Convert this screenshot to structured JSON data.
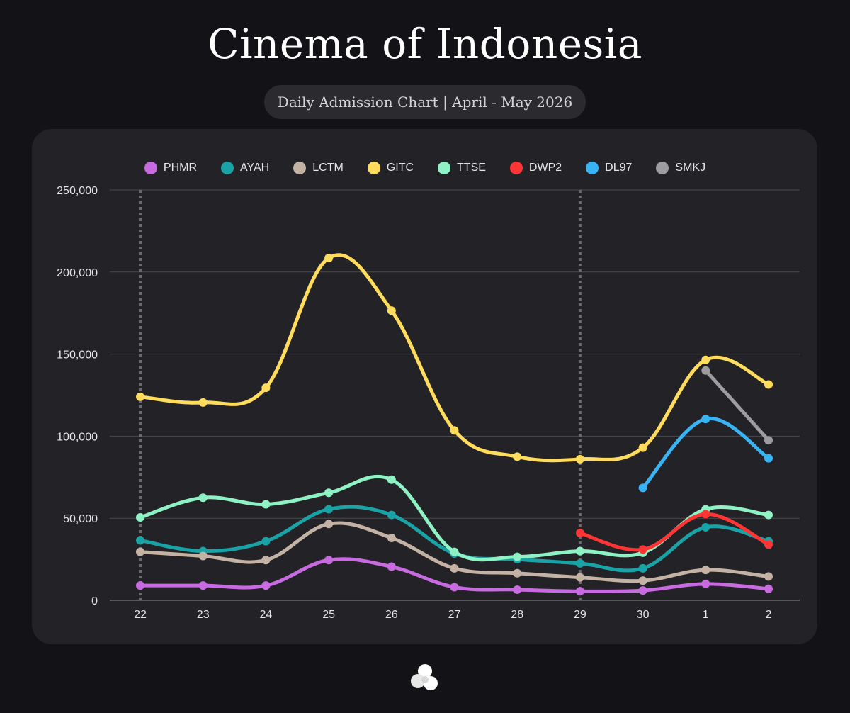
{
  "header": {
    "title": "Cinema of Indonesia",
    "subtitle": "Daily Admission Chart | April - May 2026"
  },
  "chart_data": {
    "type": "line",
    "categories": [
      "22",
      "23",
      "24",
      "25",
      "26",
      "27",
      "28",
      "29",
      "30",
      "1",
      "2"
    ],
    "ylim": [
      0,
      250000
    ],
    "yticks": [
      0,
      50000,
      100000,
      150000,
      200000,
      250000
    ],
    "ytick_labels": [
      "0",
      "50,000",
      "100,000",
      "150,000",
      "200,000",
      "250,000"
    ],
    "grid": true,
    "legend": "top",
    "markers": [
      "22",
      "29"
    ],
    "series": [
      {
        "name": "PHMR",
        "color": "#c86be0",
        "values": [
          9000,
          9000,
          9000,
          24500,
          20500,
          8000,
          6500,
          5500,
          6000,
          10000,
          7000
        ]
      },
      {
        "name": "AYAH",
        "color": "#1aa3a7",
        "values": [
          36500,
          30000,
          36000,
          55500,
          52000,
          28500,
          25000,
          22500,
          19500,
          44500,
          36000
        ]
      },
      {
        "name": "LCTM",
        "color": "#c4b3a4",
        "values": [
          29500,
          27000,
          24500,
          46500,
          38000,
          19500,
          16500,
          14000,
          12000,
          18500,
          14500
        ]
      },
      {
        "name": "GITC",
        "color": "#ffdc5c",
        "values": [
          124000,
          120500,
          129500,
          208500,
          176500,
          103500,
          87500,
          86000,
          93000,
          146500,
          131500
        ]
      },
      {
        "name": "TTSE",
        "color": "#8ef2c4",
        "values": [
          50500,
          62500,
          58500,
          65500,
          73500,
          29500,
          26500,
          30000,
          29000,
          55500,
          52000
        ]
      },
      {
        "name": "DWP2",
        "color": "#ff3535",
        "values": [
          null,
          null,
          null,
          null,
          null,
          null,
          null,
          41000,
          31000,
          52500,
          34000
        ]
      },
      {
        "name": "DL97",
        "color": "#38b4f5",
        "values": [
          null,
          null,
          null,
          null,
          null,
          null,
          null,
          null,
          68500,
          110500,
          86500
        ]
      },
      {
        "name": "SMKJ",
        "color": "#9d9da1",
        "values": [
          null,
          null,
          null,
          null,
          null,
          null,
          null,
          null,
          null,
          140000,
          97500
        ]
      }
    ]
  }
}
